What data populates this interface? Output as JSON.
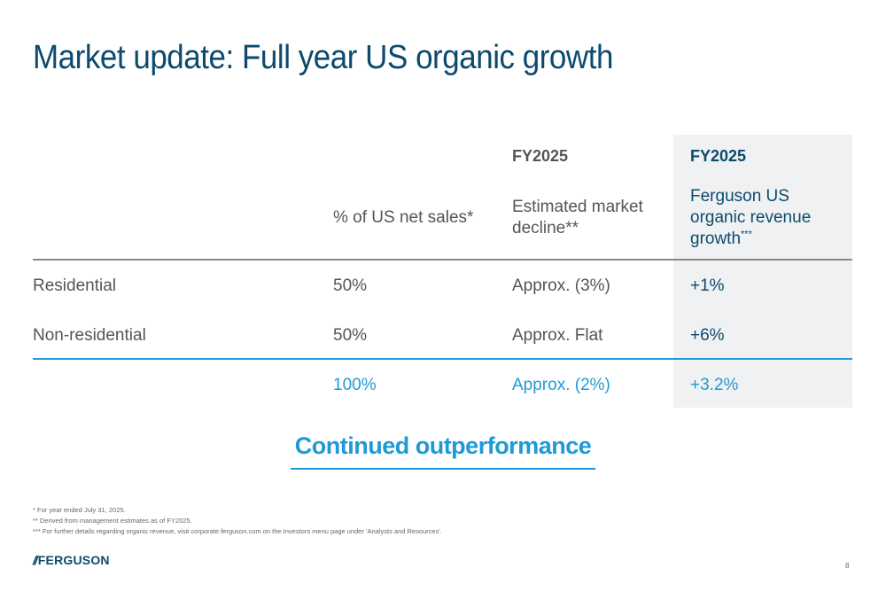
{
  "title": "Market update: Full year US organic growth",
  "table": {
    "col2": {
      "year": "",
      "label": "% of US net sales*"
    },
    "col3": {
      "year": "FY2025",
      "label": "Estimated market decline**"
    },
    "col4": {
      "year": "FY2025",
      "label_line1": "Ferguson US",
      "label_line2": "organic revenue",
      "label_line3": "growth",
      "label_sup": "***"
    },
    "rows": [
      {
        "label": "Residential",
        "share": "50%",
        "market": "Approx. (3%)",
        "ferguson": "+1%"
      },
      {
        "label": "Non-residential",
        "share": "50%",
        "market": "Approx. Flat",
        "ferguson": "+6%"
      }
    ],
    "total": {
      "share": "100%",
      "market": "Approx. (2%)",
      "ferguson": "+3.2%"
    }
  },
  "banner": "Continued outperformance",
  "footnotes": [
    "* For year ended July 31, 2025.",
    "** Derived from management estimates as of FY2025.",
    "*** For further details regarding organic revenue, visit corporate.ferguson.com on the Investors menu page under 'Analysts and Resources'."
  ],
  "logo": {
    "mark": "//",
    "text": "FERGUSON"
  },
  "page_number": "8",
  "colors": {
    "title": "#0c4a6e",
    "accent_blue": "#1f9ad6",
    "highlight_bg": "#f0f1f2",
    "text_grey": "#555555"
  }
}
